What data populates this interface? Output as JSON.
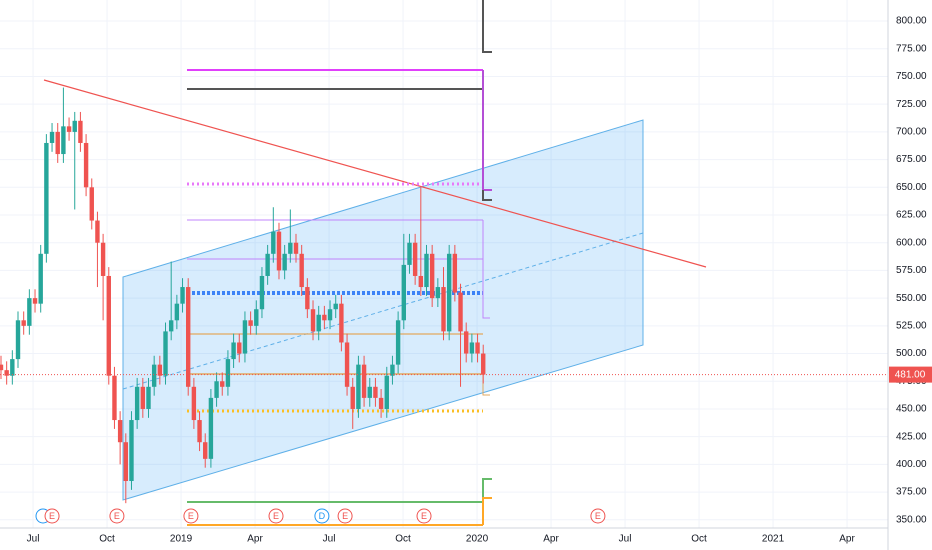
{
  "chart_data": {
    "type": "candlestick",
    "xlim": [
      4.66,
      40.66
    ],
    "ylim": [
      342.6,
      819
    ],
    "xticks": [
      {
        "value": 6,
        "label": "Jul"
      },
      {
        "value": 9,
        "label": "Oct"
      },
      {
        "value": 12,
        "label": "2019"
      },
      {
        "value": 15,
        "label": "Apr"
      },
      {
        "value": 18,
        "label": "Jul"
      },
      {
        "value": 21,
        "label": "Oct"
      },
      {
        "value": 24,
        "label": "2020"
      },
      {
        "value": 27,
        "label": "Apr"
      },
      {
        "value": 30,
        "label": "Jul"
      },
      {
        "value": 33,
        "label": "Oct"
      },
      {
        "value": 36,
        "label": "2021"
      },
      {
        "value": 39,
        "label": "Apr"
      }
    ],
    "yticks": [
      {
        "value": 350,
        "label": "350.00"
      },
      {
        "value": 375,
        "label": "375.00"
      },
      {
        "value": 400,
        "label": "400.00"
      },
      {
        "value": 425,
        "label": "425.00"
      },
      {
        "value": 450,
        "label": "450.00"
      },
      {
        "value": 475,
        "label": "475.00"
      },
      {
        "value": 500,
        "label": "500.00"
      },
      {
        "value": 525,
        "label": "525.00"
      },
      {
        "value": 550,
        "label": "550.00"
      },
      {
        "value": 575,
        "label": "575.00"
      },
      {
        "value": 600,
        "label": "600.00"
      },
      {
        "value": 625,
        "label": "625.00"
      },
      {
        "value": 650,
        "label": "650.00"
      },
      {
        "value": 675,
        "label": "675.00"
      },
      {
        "value": 700,
        "label": "700.00"
      },
      {
        "value": 725,
        "label": "725.00"
      },
      {
        "value": 750,
        "label": "750.00"
      },
      {
        "value": 775,
        "label": "775.00"
      },
      {
        "value": 800,
        "label": "800.00"
      }
    ],
    "grid": true,
    "up_color": "#26a69a",
    "down_color": "#ef5350",
    "x0": 4.7,
    "x_step": 0.23,
    "open": [
      490,
      485,
      480,
      495,
      530,
      525,
      550,
      545,
      590,
      690,
      700,
      680,
      705,
      700,
      710,
      690,
      650,
      620,
      600,
      570,
      480,
      440,
      420,
      385,
      440,
      470,
      450,
      470,
      490,
      480,
      520,
      530,
      545,
      560,
      470,
      440,
      420,
      405,
      460,
      475,
      470,
      495,
      510,
      500,
      530,
      525,
      540,
      570,
      590,
      610,
      575,
      590,
      600,
      590,
      560,
      540,
      520,
      535,
      530,
      540,
      545,
      510,
      470,
      450,
      490,
      460,
      470,
      460,
      450,
      480,
      490,
      530,
      580,
      600,
      570,
      560,
      590,
      550,
      560,
      520,
      590,
      555,
      520,
      500,
      510,
      500
    ],
    "high": [
      498,
      493,
      503,
      538,
      538,
      558,
      558,
      598,
      698,
      708,
      708,
      740,
      713,
      718,
      718,
      698,
      658,
      628,
      608,
      578,
      488,
      448,
      428,
      448,
      478,
      478,
      478,
      498,
      498,
      528,
      583,
      553,
      568,
      568,
      478,
      448,
      428,
      468,
      483,
      483,
      503,
      518,
      518,
      538,
      538,
      548,
      578,
      598,
      632,
      618,
      598,
      630,
      608,
      598,
      568,
      548,
      543,
      543,
      548,
      553,
      553,
      518,
      478,
      498,
      498,
      478,
      478,
      468,
      488,
      498,
      538,
      608,
      608,
      608,
      650,
      598,
      598,
      568,
      578,
      598,
      598,
      563,
      528,
      518,
      518,
      508
    ],
    "low": [
      477,
      472,
      472,
      487,
      517,
      517,
      537,
      537,
      582,
      682,
      672,
      672,
      692,
      630,
      682,
      642,
      612,
      560,
      530,
      472,
      432,
      400,
      365,
      377,
      432,
      442,
      442,
      462,
      472,
      472,
      512,
      522,
      537,
      462,
      432,
      412,
      397,
      397,
      452,
      462,
      462,
      487,
      492,
      492,
      517,
      517,
      532,
      562,
      582,
      567,
      567,
      582,
      582,
      552,
      532,
      512,
      512,
      522,
      522,
      532,
      502,
      462,
      432,
      442,
      452,
      452,
      452,
      442,
      442,
      472,
      482,
      522,
      572,
      562,
      552,
      552,
      542,
      542,
      512,
      512,
      547,
      470,
      492,
      492,
      492,
      473
    ],
    "close": [
      485,
      480,
      495,
      530,
      525,
      550,
      545,
      590,
      690,
      700,
      680,
      705,
      700,
      710,
      690,
      650,
      620,
      600,
      570,
      480,
      440,
      420,
      385,
      440,
      470,
      450,
      470,
      490,
      480,
      520,
      530,
      545,
      560,
      470,
      440,
      420,
      405,
      460,
      475,
      470,
      495,
      510,
      500,
      530,
      525,
      540,
      570,
      590,
      610,
      575,
      590,
      600,
      590,
      560,
      540,
      520,
      535,
      530,
      540,
      545,
      510,
      470,
      450,
      490,
      460,
      470,
      460,
      450,
      480,
      490,
      530,
      580,
      600,
      570,
      560,
      590,
      550,
      560,
      520,
      590,
      555,
      520,
      500,
      510,
      500,
      481
    ],
    "last_price": {
      "value": 481,
      "label": "481.00"
    },
    "events": [
      {
        "x": 6.77,
        "label": "E"
      },
      {
        "x": 9.4,
        "label": "E"
      },
      {
        "x": 12.4,
        "label": "E"
      },
      {
        "x": 15.85,
        "label": "E"
      },
      {
        "x": 17.71,
        "label": "D"
      },
      {
        "x": 18.65,
        "label": "E"
      },
      {
        "x": 21.85,
        "label": "E"
      },
      {
        "x": 28.9,
        "label": "E"
      }
    ]
  }
}
